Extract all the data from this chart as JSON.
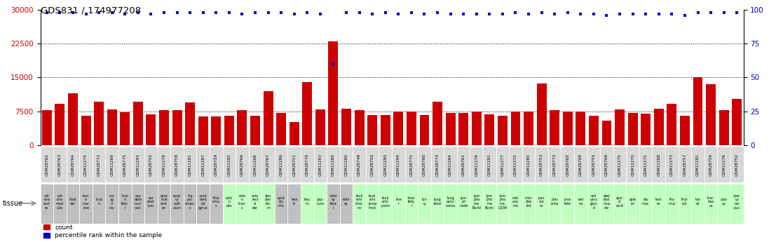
{
  "title": "GDS831 / 174977208",
  "samples": [
    "GSM28762",
    "GSM28763",
    "GSM28764",
    "GSM11274",
    "GSM28772",
    "GSM11269",
    "GSM28775",
    "GSM11293",
    "GSM28755",
    "GSM11279",
    "GSM28758",
    "GSM11281",
    "GSM11287",
    "GSM28759",
    "GSM11292",
    "GSM28766",
    "GSM11268",
    "GSM28767",
    "GSM11286",
    "GSM28751",
    "GSM28770",
    "GSM11283",
    "GSM11289",
    "GSM11280",
    "GSM28749",
    "GSM28750",
    "GSM11290",
    "GSM11294",
    "GSM28771",
    "GSM28760",
    "GSM28774",
    "GSM11284",
    "GSM28761",
    "GSM11278",
    "GSM11291",
    "GSM11277",
    "GSM11272",
    "GSM11285",
    "GSM28753",
    "GSM28773",
    "GSM28765",
    "GSM28768",
    "GSM28754",
    "GSM28769",
    "GSM11275",
    "GSM11270",
    "GSM11271",
    "GSM11288",
    "GSM11273",
    "GSM28757",
    "GSM11282",
    "GSM28756",
    "GSM11276",
    "GSM28752"
  ],
  "tissues_line1": [
    "adr",
    "adr",
    "blad",
    "bon",
    "brai",
    "am",
    "brai",
    "cau",
    "cer",
    "cere",
    "corp",
    "hip",
    "post",
    "thal",
    "colo",
    "colo",
    "colo",
    "duo",
    "epid",
    "hea",
    "lieu",
    "",
    "kidn",
    "kidn",
    "leuk",
    "leuk",
    "leuk",
    "live",
    "liver",
    "lun",
    "lung",
    "lung",
    "lym",
    "lym",
    "lym",
    "lym",
    "mel",
    "misl",
    "pan",
    "plac",
    "pros",
    "reti",
    "sali",
    "skel",
    "spin",
    "sple",
    "sto",
    "test",
    "thy",
    "thyr",
    "ton",
    "trac",
    "uter",
    "uter"
  ],
  "tissues_line2": [
    "ena",
    "ena",
    "der",
    "e",
    "n",
    "yg",
    "n",
    "date",
    "ebel",
    "bral",
    "us",
    "poc",
    "cent",
    "amu",
    "n",
    "n",
    "rect",
    "den",
    "idy",
    "rt",
    "m",
    "",
    "ey",
    "ey",
    "emi",
    "emi",
    "emi",
    "r",
    "feta",
    "g",
    "fetal",
    "carci",
    "ph",
    "pho",
    "pho",
    "pho",
    "ano",
    "abe",
    "cre",
    "enta",
    "tate",
    "na",
    "vary",
    "etal",
    "al",
    "en",
    "mac",
    "es",
    "mus",
    "oid",
    "sil",
    "hea",
    "us",
    "us"
  ],
  "tissues_line3": [
    "cort",
    "med",
    "",
    "mar",
    "",
    "d",
    "feta",
    "nucl",
    "lum",
    "cort",
    "calli",
    "ampu",
    "ral",
    "s",
    "des",
    "tran",
    "al",
    "idu",
    "mis",
    "",
    "",
    "jeju",
    "feta",
    "",
    "chro",
    "lymp",
    "prom",
    "",
    "l",
    "",
    "",
    "noma",
    "node",
    "ma",
    "ma",
    "ma",
    "ma",
    "led",
    "as",
    "",
    "",
    "",
    "glan",
    "mus",
    "cord",
    "",
    "",
    "",
    "",
    "",
    "",
    "us",
    "",
    "cor"
  ],
  "tissues_line4": [
    "ex",
    "ulla",
    "",
    "row",
    "",
    "ala",
    "l",
    "eus",
    "",
    "ex",
    "osun",
    "s",
    "gyrus",
    "",
    "",
    "s",
    "der",
    "m",
    "",
    "",
    "",
    "num",
    "l",
    "",
    "no",
    "hron",
    "",
    "",
    "",
    "",
    "",
    "",
    "",
    "Burki",
    "Burki",
    "G336",
    "",
    "",
    "",
    "",
    "",
    "",
    "d",
    "cle",
    "",
    "",
    "",
    "",
    "",
    "",
    "",
    "",
    "",
    "pus"
  ],
  "tissue_colors": [
    "#c0c0c0",
    "#c0c0c0",
    "#c0c0c0",
    "#c0c0c0",
    "#c0c0c0",
    "#c0c0c0",
    "#c0c0c0",
    "#c0c0c0",
    "#c0c0c0",
    "#c0c0c0",
    "#c0c0c0",
    "#c0c0c0",
    "#c0c0c0",
    "#c0c0c0",
    "#c0ffc0",
    "#c0ffc0",
    "#c0ffc0",
    "#c0ffc0",
    "#c0c0c0",
    "#c0c0c0",
    "#c0ffc0",
    "#c0ffc0",
    "#c0c0c0",
    "#c0c0c0",
    "#c0ffc0",
    "#c0ffc0",
    "#c0ffc0",
    "#c0ffc0",
    "#c0ffc0",
    "#c0ffc0",
    "#c0ffc0",
    "#c0ffc0",
    "#c0ffc0",
    "#c0ffc0",
    "#c0ffc0",
    "#c0ffc0",
    "#c0ffc0",
    "#c0ffc0",
    "#c0ffc0",
    "#c0ffc0",
    "#c0ffc0",
    "#c0ffc0",
    "#c0ffc0",
    "#c0ffc0",
    "#c0ffc0",
    "#c0ffc0",
    "#c0ffc0",
    "#c0ffc0",
    "#c0ffc0",
    "#c0ffc0",
    "#c0ffc0",
    "#c0ffc0",
    "#c0ffc0",
    "#c0ffc0"
  ],
  "counts": [
    7700,
    9200,
    11500,
    6500,
    9700,
    7900,
    7300,
    9700,
    6800,
    7700,
    7700,
    9500,
    6400,
    6400,
    6500,
    7800,
    6500,
    11900,
    7100,
    5200,
    14000,
    7900,
    23000,
    8100,
    7700,
    6600,
    6700,
    7400,
    7400,
    6600,
    9700,
    7100,
    7200,
    7400,
    6800,
    6500,
    7500,
    7400,
    13600,
    7800,
    7500,
    7400,
    6500,
    5500,
    7900,
    7200,
    7000,
    8100,
    9200,
    6500,
    15100,
    13500,
    7700,
    10200
  ],
  "percentiles": [
    98,
    98,
    98,
    97,
    98,
    98,
    97,
    98,
    97,
    98,
    98,
    98,
    98,
    98,
    98,
    97,
    98,
    98,
    98,
    97,
    98,
    97,
    60,
    98,
    98,
    97,
    98,
    97,
    98,
    97,
    98,
    97,
    97,
    97,
    97,
    97,
    98,
    97,
    98,
    97,
    98,
    97,
    97,
    96,
    97,
    97,
    97,
    97,
    97,
    96,
    98,
    98,
    98,
    98
  ],
  "bar_color": "#cc0000",
  "dot_color": "#0000cc",
  "left_yaxis_color": "#cc0000",
  "right_yaxis_color": "#0000cc",
  "yticks_left": [
    0,
    7500,
    15000,
    22500,
    30000
  ],
  "yticks_right": [
    0,
    25,
    50,
    75,
    100
  ],
  "ylim_left": [
    0,
    30000
  ],
  "ylim_right": [
    0,
    100
  ],
  "grid_lines": [
    7500,
    15000,
    22500
  ],
  "background_color": "#ffffff",
  "legend_count_label": "count",
  "legend_pct_label": "percentile rank within the sample",
  "tissue_label": "tissue"
}
